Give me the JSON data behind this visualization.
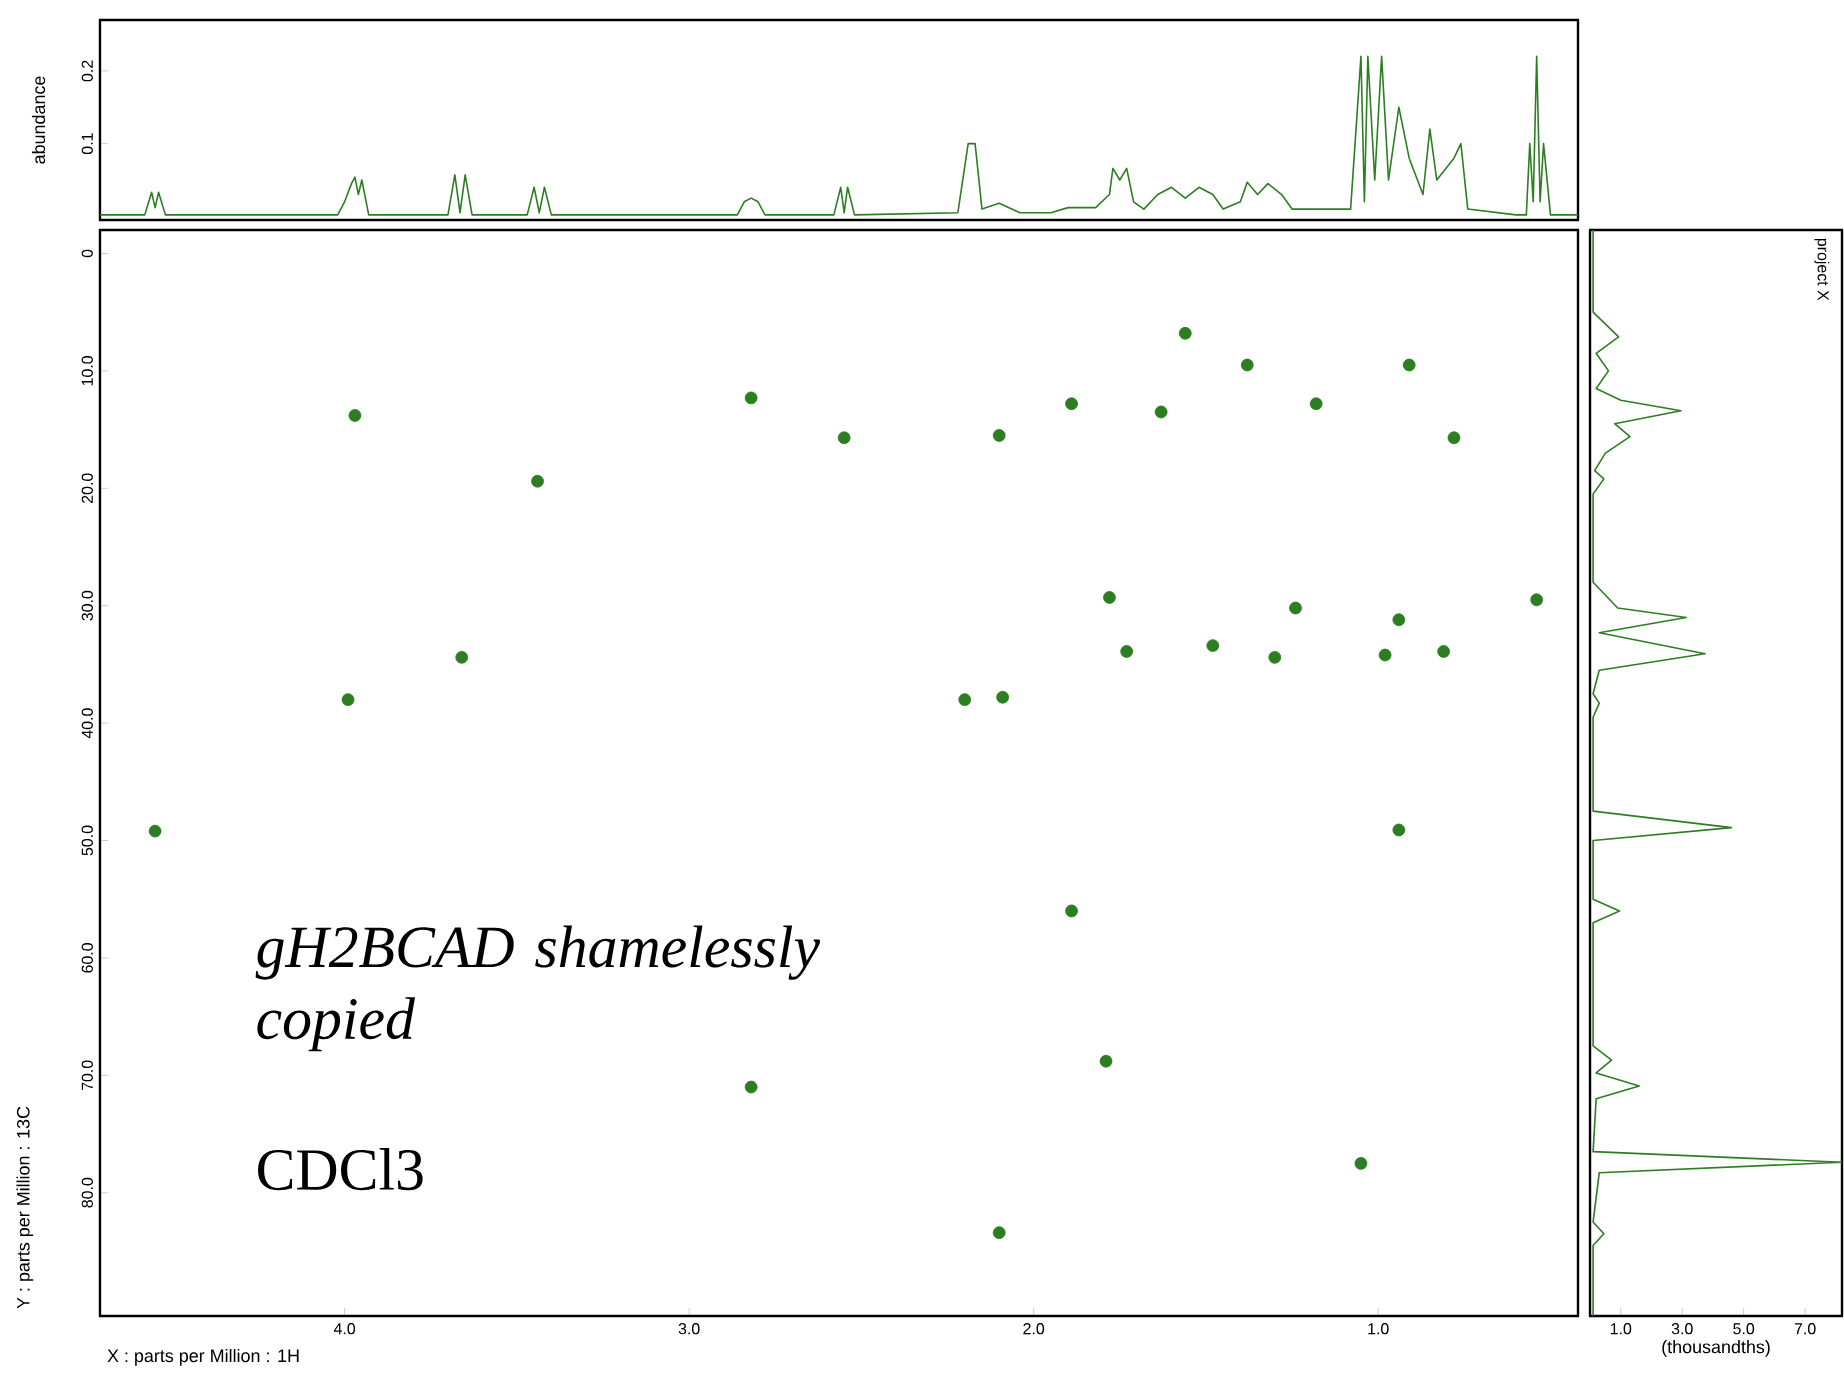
{
  "chart_data": [
    {
      "type": "line",
      "ylabel": "abundance",
      "xlim": [
        4.71,
        0.42
      ],
      "ylim": [
        -0.005,
        0.27
      ],
      "yticks": [
        0.1,
        0.2
      ],
      "tick_labels": "y",
      "marker": "none",
      "line_style": "solid",
      "series": [
        {
          "color": "#2d7d23",
          "x": [
            4.71,
            4.58,
            4.56,
            4.55,
            4.54,
            4.52,
            4.02,
            4.0,
            3.98,
            3.97,
            3.96,
            3.95,
            3.93,
            3.7,
            3.68,
            3.665,
            3.65,
            3.63,
            3.47,
            3.45,
            3.435,
            3.42,
            3.4,
            2.86,
            2.84,
            2.82,
            2.8,
            2.78,
            2.58,
            2.56,
            2.55,
            2.54,
            2.52,
            2.22,
            2.19,
            2.18,
            2.17,
            2.15,
            2.1,
            2.04,
            1.95,
            1.9,
            1.82,
            1.78,
            1.77,
            1.75,
            1.73,
            1.71,
            1.68,
            1.64,
            1.6,
            1.56,
            1.52,
            1.48,
            1.45,
            1.4,
            1.38,
            1.35,
            1.32,
            1.28,
            1.25,
            1.15,
            1.08,
            1.05,
            1.04,
            1.03,
            1.01,
            0.99,
            0.97,
            0.95,
            0.94,
            0.93,
            0.91,
            0.87,
            0.85,
            0.83,
            0.8,
            0.78,
            0.76,
            0.74,
            0.6,
            0.57,
            0.56,
            0.55,
            0.54,
            0.53,
            0.52,
            0.5,
            0.42
          ],
          "values": [
            0.002,
            0.002,
            0.033,
            0.012,
            0.033,
            0.002,
            0.002,
            0.02,
            0.045,
            0.054,
            0.03,
            0.05,
            0.002,
            0.002,
            0.057,
            0.005,
            0.057,
            0.002,
            0.002,
            0.04,
            0.005,
            0.04,
            0.002,
            0.002,
            0.02,
            0.025,
            0.02,
            0.002,
            0.002,
            0.04,
            0.005,
            0.04,
            0.002,
            0.005,
            0.1,
            null,
            0.1,
            0.01,
            0.018,
            0.005,
            0.005,
            0.012,
            0.012,
            0.03,
            0.066,
            0.05,
            0.066,
            0.02,
            0.01,
            0.03,
            0.04,
            0.025,
            0.04,
            0.03,
            0.01,
            0.02,
            0.047,
            0.03,
            0.045,
            0.03,
            0.01,
            0.01,
            0.01,
            0.22,
            0.02,
            0.22,
            0.05,
            0.22,
            0.05,
            null,
            0.15,
            null,
            0.08,
            0.03,
            0.12,
            0.05,
            null,
            0.08,
            0.1,
            0.01,
            0.002,
            0.002,
            0.1,
            0.02,
            0.22,
            0.02,
            0.1,
            0.002,
            0.002
          ]
        }
      ]
    },
    {
      "type": "scatter",
      "xlabel": "X : parts per Million : 1H",
      "ylabel": "Y : parts per Million : 13C",
      "xlim": [
        4.71,
        0.42
      ],
      "ylim": [
        90.5,
        -2
      ],
      "xticks": [
        {
          "value": 4,
          "label": "4.0"
        },
        {
          "value": 3,
          "label": "3.0"
        },
        {
          "value": 2,
          "label": "2.0"
        },
        {
          "value": 1,
          "label": "1.0"
        }
      ],
      "yticks": [
        0,
        {
          "value": 10,
          "label": "10.0"
        },
        {
          "value": 20,
          "label": "20.0"
        },
        {
          "value": 30,
          "label": "30.0"
        },
        {
          "value": 40,
          "label": "40.0"
        },
        {
          "value": 50,
          "label": "50.0"
        },
        {
          "value": 60,
          "label": "60.0"
        },
        {
          "value": 70,
          "label": "70.0"
        },
        {
          "value": 80,
          "label": "80.0"
        }
      ],
      "marker": "circle",
      "annotations": [
        "gH2BCAD shamelessly copied",
        "CDCl3"
      ],
      "series": [
        {
          "color": "#2d7d23",
          "x": [
            4.55,
            3.97,
            3.66,
            3.44,
            2.82,
            2.55,
            3.99,
            2.1,
            1.89,
            1.56,
            1.63,
            1.38,
            1.18,
            0.91,
            0.78,
            1.78,
            1.24,
            0.94,
            0.54,
            1.73,
            1.48,
            1.3,
            0.98,
            0.81,
            2.09,
            2.2,
            0.94,
            1.89,
            1.79,
            2.82,
            1.05,
            2.1
          ],
          "values": [
            49.2,
            13.8,
            34.4,
            19.4,
            12.3,
            15.7,
            38.0,
            15.5,
            12.8,
            6.8,
            13.5,
            9.5,
            12.8,
            9.5,
            15.7,
            29.3,
            30.2,
            31.2,
            29.5,
            33.9,
            33.4,
            34.4,
            34.2,
            33.9,
            37.8,
            38.0,
            49.1,
            56.0,
            68.8,
            71.0,
            77.5,
            83.4
          ]
        }
      ]
    },
    {
      "type": "line",
      "xlabel": "(thousandths)",
      "xlim": [
        0,
        8.2
      ],
      "ylim": [
        90.5,
        -2
      ],
      "xticks": [
        {
          "value": 1,
          "label": "1.0"
        },
        {
          "value": 3,
          "label": "3.0"
        },
        {
          "value": 5,
          "label": "5.0"
        },
        {
          "value": 7,
          "label": "7.0"
        }
      ],
      "tick_labels": "x",
      "marker": "none",
      "line_style": "solid",
      "annotations": [
        "project X"
      ],
      "series": [
        {
          "color": "#2d7d23",
          "x": [
            0.1,
            0.1,
            0.93,
            0.2,
            0.6,
            0.2,
            1.0,
            2.96,
            0.8,
            1.3,
            0.5,
            0.15,
            0.45,
            0.1,
            0.1,
            0.9,
            3.13,
            0.3,
            3.74,
            0.3,
            0.1,
            0.3,
            0.1,
            0.1,
            4.6,
            0.1,
            0.1,
            0.96,
            0.1,
            0.1,
            0.7,
            0.2,
            1.6,
            0.2,
            0.1,
            8.2,
            0.3,
            0.1,
            0.45,
            0.1,
            0.1
          ],
          "values": [
            -2,
            5,
            7.1,
            8.5,
            10,
            11.5,
            12.5,
            13.4,
            14.5,
            15.6,
            17,
            18.5,
            19.2,
            20.5,
            28,
            30.2,
            31.0,
            32.3,
            34.1,
            35.5,
            37.5,
            38.3,
            39.5,
            47.5,
            48.9,
            50,
            55,
            56.0,
            57,
            67.5,
            68.7,
            69.8,
            70.9,
            72,
            76.5,
            77.4,
            78.3,
            82.5,
            83.5,
            84.5,
            90.5
          ]
        }
      ]
    }
  ]
}
